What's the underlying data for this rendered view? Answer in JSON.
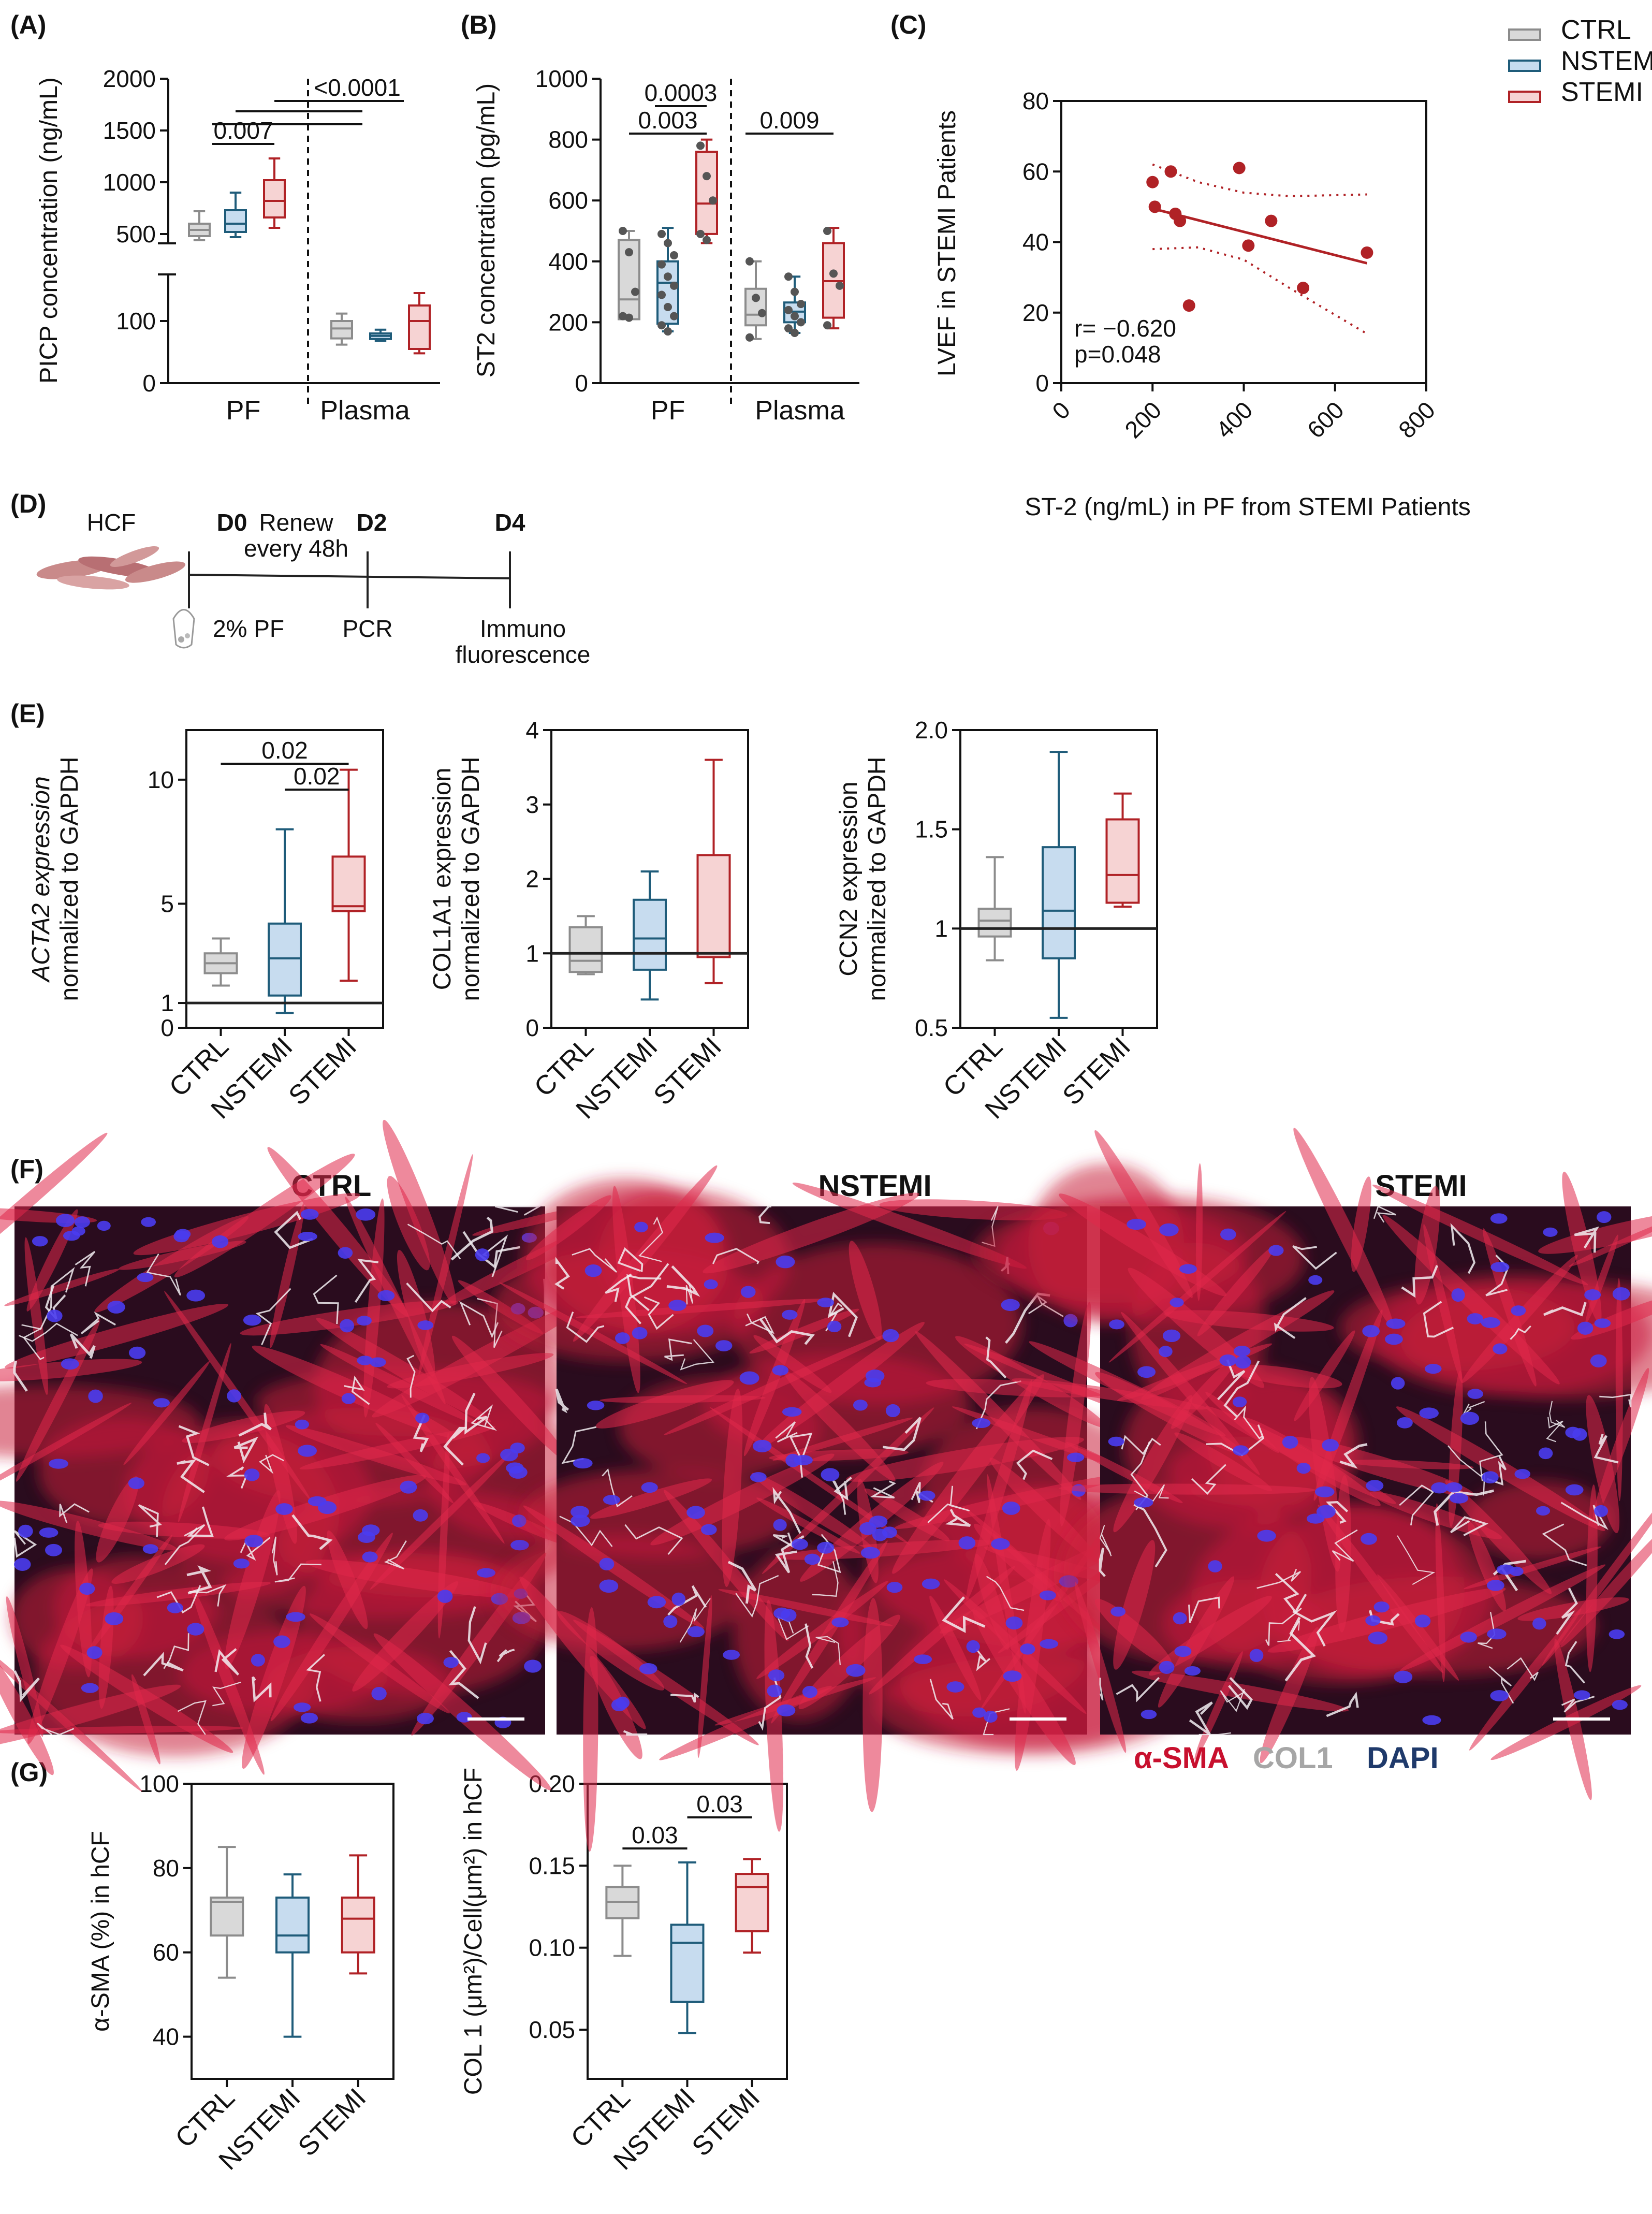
{
  "colors": {
    "CTRL": "#8c8c8c",
    "NSTEMI": "#1f5c7a",
    "STEMI": "#b02226",
    "CTRL_fill": "#d9d9d9",
    "NSTEMI_fill": "#c7dcef",
    "STEMI_fill": "#f6d3d3"
  },
  "legend": [
    {
      "name": "CTRL",
      "key": "CTRL"
    },
    {
      "name": "NSTEMI",
      "key": "NSTEMI"
    },
    {
      "name": "STEMI",
      "key": "STEMI"
    }
  ],
  "panel_labels": {
    "A": "(A)",
    "B": "(B)",
    "C": "(C)",
    "D": "(D)",
    "E": "(E)",
    "F": "(F)",
    "G": "(G)"
  },
  "timeline": {
    "cell": "HCF",
    "d0": "D0",
    "renew1": "Renew",
    "renew2": "every 48h",
    "d2": "D2",
    "d4": "D4",
    "pf": "2% PF",
    "pcr": "PCR",
    "immuno1": "Immuno",
    "immuno2": "fluorescence"
  },
  "micrographs": {
    "titles": [
      "CTRL",
      "NSTEMI",
      "STEMI"
    ],
    "stain_legend": [
      {
        "text": "α-SMA",
        "color": "#c8102e"
      },
      {
        "text": "COL1",
        "color": "#a6a6a6"
      },
      {
        "text": "DAPI",
        "color": "#1f3a6b"
      }
    ]
  },
  "chart_data": [
    {
      "id": "A",
      "type": "box",
      "ylabel": "PICP concentration (ng/mL)",
      "group_labels": [
        "PF",
        "Plasma"
      ],
      "ylim_low": [
        0,
        150
      ],
      "ylim_high": [
        400,
        2000
      ],
      "yticks_low": [
        0,
        100
      ],
      "yticks_high": [
        500,
        1000,
        1500,
        2000
      ],
      "boxes": [
        {
          "group": "PF",
          "series": "CTRL",
          "min": 440,
          "q1": 480,
          "median": 540,
          "q3": 600,
          "max": 720
        },
        {
          "group": "PF",
          "series": "NSTEMI",
          "min": 470,
          "q1": 520,
          "median": 600,
          "q3": 730,
          "max": 900
        },
        {
          "group": "PF",
          "series": "STEMI",
          "min": 560,
          "q1": 660,
          "median": 820,
          "q3": 1020,
          "max": 1230
        },
        {
          "group": "Plasma",
          "series": "CTRL",
          "min": 62,
          "q1": 72,
          "median": 88,
          "q3": 100,
          "max": 112
        },
        {
          "group": "Plasma",
          "series": "NSTEMI",
          "min": 68,
          "q1": 71,
          "median": 76,
          "q3": 80,
          "max": 86
        },
        {
          "group": "Plasma",
          "series": "STEMI",
          "min": 48,
          "q1": 55,
          "median": 100,
          "q3": 125,
          "max": 145
        }
      ],
      "annotations": [
        "0.007",
        "<0.0001"
      ]
    },
    {
      "id": "B",
      "type": "box",
      "ylabel": "ST2 concentration (pg/mL)",
      "group_labels": [
        "PF",
        "Plasma"
      ],
      "ylim": [
        0,
        1000
      ],
      "yticks": [
        0,
        200,
        400,
        600,
        800,
        1000
      ],
      "boxes": [
        {
          "group": "PF",
          "series": "CTRL",
          "min": 210,
          "q1": 210,
          "median": 275,
          "q3": 470,
          "max": 500
        },
        {
          "group": "PF",
          "series": "NSTEMI",
          "min": 170,
          "q1": 195,
          "median": 330,
          "q3": 400,
          "max": 510
        },
        {
          "group": "PF",
          "series": "STEMI",
          "min": 460,
          "q1": 490,
          "median": 590,
          "q3": 760,
          "max": 800
        },
        {
          "group": "Plasma",
          "series": "CTRL",
          "min": 145,
          "q1": 190,
          "median": 225,
          "q3": 310,
          "max": 400
        },
        {
          "group": "Plasma",
          "series": "NSTEMI",
          "min": 165,
          "q1": 200,
          "median": 235,
          "q3": 265,
          "max": 350
        },
        {
          "group": "Plasma",
          "series": "STEMI",
          "min": 180,
          "q1": 215,
          "median": 335,
          "q3": 460,
          "max": 510
        }
      ],
      "points": [
        {
          "series": "CTRL",
          "values": [
            500,
            430,
            300,
            220,
            215
          ]
        },
        {
          "series": "NSTEMI",
          "values": [
            490,
            460,
            420,
            390,
            350,
            320,
            290,
            250,
            220,
            190,
            170
          ]
        },
        {
          "series": "STEMI",
          "values": [
            780,
            680,
            600,
            490,
            470
          ]
        },
        {
          "series": "pCTRL",
          "values": [
            400,
            280,
            230,
            150
          ]
        },
        {
          "series": "pNSTEMI",
          "values": [
            350,
            300,
            260,
            240,
            220,
            200,
            180,
            165
          ]
        },
        {
          "series": "pSTEMI",
          "values": [
            500,
            360,
            320,
            190
          ]
        }
      ],
      "annotations": [
        "0.0003",
        "0.003",
        "0.009"
      ]
    },
    {
      "id": "C",
      "type": "scatter",
      "xlabel": "ST-2 (ng/mL) in PF from STEMI Patients",
      "ylabel": "LVEF in STEMI Patients",
      "xlim": [
        0,
        800
      ],
      "ylim": [
        0,
        80
      ],
      "xticks": [
        0,
        200,
        400,
        600,
        800
      ],
      "yticks": [
        0,
        20,
        40,
        60,
        80
      ],
      "points": [
        [
          200,
          57
        ],
        [
          205,
          50
        ],
        [
          240,
          60
        ],
        [
          250,
          48
        ],
        [
          260,
          46
        ],
        [
          280,
          22
        ],
        [
          390,
          61
        ],
        [
          410,
          39
        ],
        [
          460,
          46
        ],
        [
          530,
          27
        ],
        [
          670,
          37
        ]
      ],
      "fit": {
        "x1": 200,
        "y1": 49.5,
        "x2": 670,
        "y2": 34
      },
      "ci_upper": [
        [
          200,
          62
        ],
        [
          300,
          57
        ],
        [
          400,
          54
        ],
        [
          500,
          53
        ],
        [
          670,
          53.5
        ]
      ],
      "ci_lower": [
        [
          200,
          38
        ],
        [
          300,
          38.5
        ],
        [
          400,
          35
        ],
        [
          500,
          27
        ],
        [
          670,
          14
        ]
      ],
      "stats": [
        "r= −0.620",
        "p=0.048"
      ]
    },
    {
      "id": "E1",
      "type": "box",
      "ylabel1": "ACTA2 expression",
      "ylabel2": "normalized to GAPDH",
      "categories": [
        "CTRL",
        "NSTEMI",
        "STEMI"
      ],
      "ylim": [
        0,
        12
      ],
      "yticks": [
        0,
        1,
        5,
        10
      ],
      "boxes": [
        {
          "series": "CTRL",
          "min": 1.7,
          "q1": 2.2,
          "median": 2.6,
          "q3": 3.0,
          "max": 3.6
        },
        {
          "series": "NSTEMI",
          "min": 0.6,
          "q1": 1.3,
          "median": 2.8,
          "q3": 4.2,
          "max": 8.0
        },
        {
          "series": "STEMI",
          "min": 1.9,
          "q1": 4.7,
          "median": 4.9,
          "q3": 6.9,
          "max": 10.4
        }
      ],
      "refline": 1,
      "annotations": [
        "0.02",
        "0.02"
      ]
    },
    {
      "id": "E2",
      "type": "box",
      "ylabel1": "COL1A1 expression",
      "ylabel2": "normalized to GAPDH",
      "categories": [
        "CTRL",
        "NSTEMI",
        "STEMI"
      ],
      "ylim": [
        0,
        4
      ],
      "yticks": [
        0,
        1,
        2,
        3,
        4
      ],
      "boxes": [
        {
          "series": "CTRL",
          "min": 0.72,
          "q1": 0.75,
          "median": 0.9,
          "q3": 1.35,
          "max": 1.5
        },
        {
          "series": "NSTEMI",
          "min": 0.38,
          "q1": 0.78,
          "median": 1.2,
          "q3": 1.72,
          "max": 2.1
        },
        {
          "series": "STEMI",
          "min": 0.6,
          "q1": 0.95,
          "median": 1.0,
          "q3": 2.32,
          "max": 3.6
        }
      ],
      "refline": 1
    },
    {
      "id": "E3",
      "type": "box",
      "ylabel1": "CCN2 expression",
      "ylabel2": "normalized to GAPDH",
      "categories": [
        "CTRL",
        "NSTEMI",
        "STEMI"
      ],
      "ylim": [
        0.5,
        2.0
      ],
      "yticks": [
        0.5,
        1,
        1.5,
        2.0
      ],
      "ytick_labels": [
        "0.5",
        "1",
        "1.5",
        "2.0"
      ],
      "boxes": [
        {
          "series": "CTRL",
          "min": 0.84,
          "q1": 0.96,
          "median": 1.04,
          "q3": 1.1,
          "max": 1.36
        },
        {
          "series": "NSTEMI",
          "min": 0.55,
          "q1": 0.85,
          "median": 1.09,
          "q3": 1.41,
          "max": 1.89
        },
        {
          "series": "STEMI",
          "min": 1.11,
          "q1": 1.13,
          "median": 1.27,
          "q3": 1.55,
          "max": 1.68
        }
      ],
      "refline": 1
    },
    {
      "id": "G1",
      "type": "box",
      "ylabel": "α-SMA (%) in hCF",
      "categories": [
        "CTRL",
        "NSTEMI",
        "STEMI"
      ],
      "ylim": [
        30,
        100
      ],
      "yticks": [
        40,
        60,
        80,
        100
      ],
      "boxes": [
        {
          "series": "CTRL",
          "min": 54,
          "q1": 64,
          "median": 72,
          "q3": 73,
          "max": 85
        },
        {
          "series": "NSTEMI",
          "min": 40,
          "q1": 60,
          "median": 64,
          "q3": 73,
          "max": 78.5
        },
        {
          "series": "STEMI",
          "min": 55,
          "q1": 60,
          "median": 68,
          "q3": 73,
          "max": 83
        }
      ]
    },
    {
      "id": "G2",
      "type": "box",
      "ylabel": "COL 1 (μm²)/Cell(μm²) in hCF",
      "categories": [
        "CTRL",
        "NSTEMI",
        "STEMI"
      ],
      "ylim": [
        0.02,
        0.2
      ],
      "yticks": [
        0.05,
        0.1,
        0.15,
        0.2
      ],
      "ytick_labels": [
        "0.05",
        "0.10",
        "0.15",
        "0.20"
      ],
      "boxes": [
        {
          "series": "CTRL",
          "min": 0.095,
          "q1": 0.118,
          "median": 0.128,
          "q3": 0.137,
          "max": 0.15
        },
        {
          "series": "NSTEMI",
          "min": 0.048,
          "q1": 0.067,
          "median": 0.103,
          "q3": 0.114,
          "max": 0.152
        },
        {
          "series": "STEMI",
          "min": 0.097,
          "q1": 0.11,
          "median": 0.137,
          "q3": 0.145,
          "max": 0.154
        }
      ],
      "annotations": [
        "0.03",
        "0.03"
      ]
    }
  ]
}
